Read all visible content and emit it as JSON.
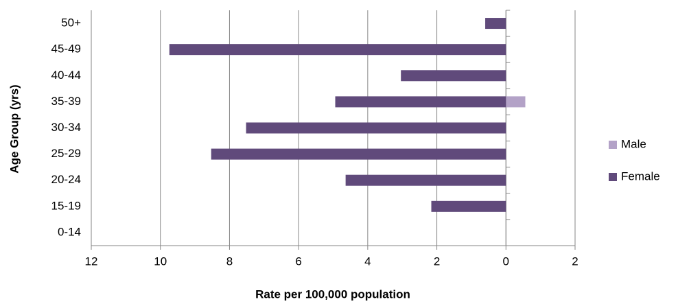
{
  "chart_data": {
    "type": "bar",
    "orientation": "horizontal",
    "x_label": "Rate per 100,000 population",
    "y_label": "Age Group (yrs)",
    "categories": [
      "0-14",
      "15-19",
      "20-24",
      "25-29",
      "30-34",
      "35-39",
      "40-44",
      "45-49",
      "50+"
    ],
    "series": [
      {
        "name": "Male",
        "color": "#b3a2c7",
        "values": [
          0,
          0,
          0,
          0,
          0,
          0.56,
          0,
          0,
          0
        ]
      },
      {
        "name": "Female",
        "color": "#604a7b",
        "values": [
          0,
          -2.16,
          -4.64,
          -8.53,
          -7.52,
          -4.94,
          -3.04,
          -9.74,
          -0.6
        ]
      }
    ],
    "xlim": [
      -12,
      2
    ],
    "xticks": [
      {
        "value": -12,
        "label": "12"
      },
      {
        "value": -10,
        "label": "10"
      },
      {
        "value": -8,
        "label": "8"
      },
      {
        "value": -6,
        "label": "6"
      },
      {
        "value": -4,
        "label": "4"
      },
      {
        "value": -2,
        "label": "2"
      },
      0,
      2
    ],
    "grid": true,
    "legend": "right"
  }
}
